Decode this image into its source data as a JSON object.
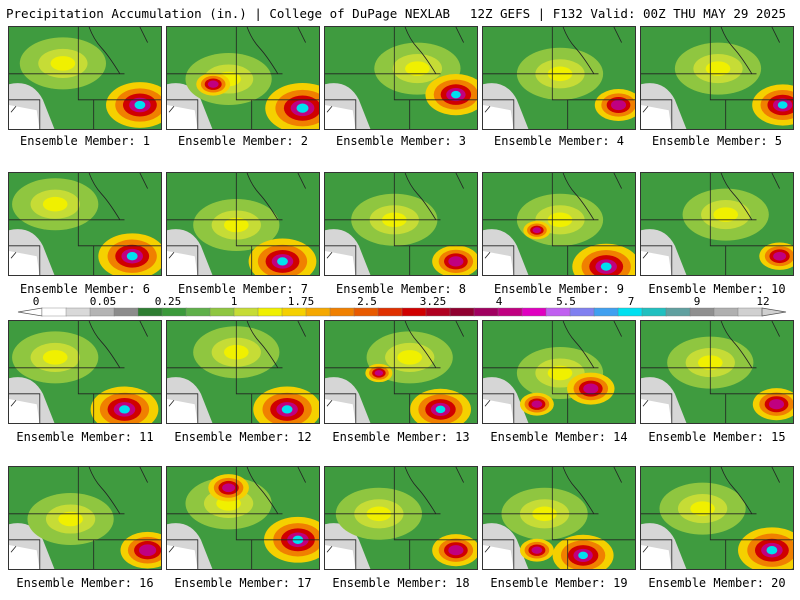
{
  "header": {
    "title": "Precipitation Accumulation (in.) | College of DuPage NEXLAB",
    "run_info": "12Z GEFS | F132 Valid: 00Z THU MAY 29 2025"
  },
  "member_label_prefix": "Ensemble Member: ",
  "members": [
    {
      "n": "1",
      "hot": [
        [
          0.85,
          0.75,
          1.0
        ]
      ],
      "ycore": [
        [
          0.35,
          0.35
        ]
      ]
    },
    {
      "n": "2",
      "hot": [
        [
          0.88,
          0.78,
          1.1
        ],
        [
          0.3,
          0.55,
          0.5
        ]
      ],
      "ycore": [
        [
          0.4,
          0.5
        ]
      ]
    },
    {
      "n": "3",
      "hot": [
        [
          0.85,
          0.65,
          0.9
        ]
      ],
      "ycore": [
        [
          0.6,
          0.4
        ]
      ]
    },
    {
      "n": "4",
      "hot": [
        [
          0.88,
          0.75,
          0.7
        ]
      ],
      "ycore": [
        [
          0.5,
          0.45
        ]
      ]
    },
    {
      "n": "5",
      "hot": [
        [
          0.92,
          0.75,
          0.9
        ]
      ],
      "ycore": [
        [
          0.5,
          0.4
        ]
      ]
    },
    {
      "n": "6",
      "hot": [
        [
          0.8,
          0.8,
          1.0
        ]
      ],
      "ycore": [
        [
          0.3,
          0.3
        ]
      ]
    },
    {
      "n": "7",
      "hot": [
        [
          0.75,
          0.85,
          1.0
        ]
      ],
      "ycore": [
        [
          0.45,
          0.5
        ]
      ]
    },
    {
      "n": "8",
      "hot": [
        [
          0.85,
          0.85,
          0.7
        ]
      ],
      "ycore": [
        [
          0.45,
          0.45
        ]
      ]
    },
    {
      "n": "9",
      "hot": [
        [
          0.8,
          0.9,
          1.0
        ],
        [
          0.35,
          0.55,
          0.4
        ]
      ],
      "ycore": [
        [
          0.5,
          0.45
        ]
      ]
    },
    {
      "n": "10",
      "hot": [
        [
          0.9,
          0.8,
          0.6
        ]
      ],
      "ycore": [
        [
          0.55,
          0.4
        ]
      ]
    },
    {
      "n": "11",
      "hot": [
        [
          0.75,
          0.85,
          1.0
        ]
      ],
      "ycore": [
        [
          0.3,
          0.35
        ]
      ]
    },
    {
      "n": "12",
      "hot": [
        [
          0.78,
          0.85,
          1.0
        ]
      ],
      "ycore": [
        [
          0.45,
          0.3
        ]
      ]
    },
    {
      "n": "13",
      "hot": [
        [
          0.75,
          0.85,
          0.9
        ],
        [
          0.35,
          0.5,
          0.4
        ]
      ],
      "ycore": [
        [
          0.55,
          0.35
        ]
      ]
    },
    {
      "n": "14",
      "hot": [
        [
          0.7,
          0.65,
          0.7
        ],
        [
          0.35,
          0.8,
          0.5
        ]
      ],
      "ycore": [
        [
          0.5,
          0.5
        ]
      ]
    },
    {
      "n": "15",
      "hot": [
        [
          0.88,
          0.8,
          0.7
        ]
      ],
      "ycore": [
        [
          0.45,
          0.4
        ]
      ]
    },
    {
      "n": "16",
      "hot": [
        [
          0.9,
          0.8,
          0.8
        ]
      ],
      "ycore": [
        [
          0.4,
          0.5
        ]
      ]
    },
    {
      "n": "17",
      "hot": [
        [
          0.85,
          0.7,
          1.0
        ],
        [
          0.4,
          0.2,
          0.6
        ]
      ],
      "ycore": [
        [
          0.4,
          0.35
        ]
      ]
    },
    {
      "n": "18",
      "hot": [
        [
          0.85,
          0.8,
          0.7
        ]
      ],
      "ycore": [
        [
          0.35,
          0.45
        ]
      ]
    },
    {
      "n": "19",
      "hot": [
        [
          0.65,
          0.85,
          0.9
        ],
        [
          0.35,
          0.8,
          0.5
        ]
      ],
      "ycore": [
        [
          0.4,
          0.45
        ]
      ]
    },
    {
      "n": "20",
      "hot": [
        [
          0.85,
          0.8,
          1.0
        ]
      ],
      "ycore": [
        [
          0.4,
          0.4
        ]
      ]
    }
  ],
  "colorbar": {
    "labels": [
      "0",
      "0.05",
      "0.25",
      "1",
      "1.75",
      "2.5",
      "3.25",
      "4",
      "5.5",
      "7",
      "9",
      "12"
    ],
    "colors": [
      "#ffffff",
      "#d9d9d9",
      "#b4b4b4",
      "#8c8c8c",
      "#2e7d32",
      "#3b9a3b",
      "#5fb04a",
      "#8fc640",
      "#c6dc36",
      "#f0f000",
      "#f5d000",
      "#f5a800",
      "#f08000",
      "#e85a00",
      "#e03000",
      "#d00000",
      "#b00020",
      "#900030",
      "#a00060",
      "#c00080",
      "#e000c0",
      "#c060f0",
      "#8080f0",
      "#40a0f0",
      "#00e0f0",
      "#20c0c0",
      "#60a0a0",
      "#909090",
      "#b0b0b0",
      "#d0d0d0"
    ]
  }
}
